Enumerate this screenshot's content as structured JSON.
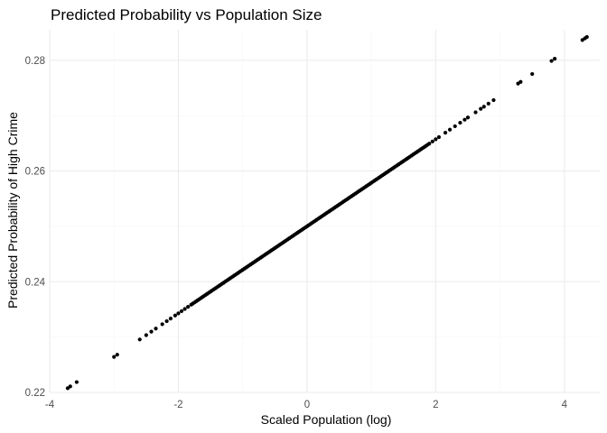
{
  "chart_data": {
    "type": "scatter",
    "title": "Predicted Probability vs Population Size",
    "xlabel": "Scaled Population (log)",
    "ylabel": "Predicted Probability of High Crime",
    "xlim": [
      -4.0,
      4.55
    ],
    "ylim": [
      0.22,
      0.2855
    ],
    "x_ticks": [
      -4,
      -2,
      0,
      2,
      4
    ],
    "y_ticks": [
      0.22,
      0.24,
      0.26,
      0.28
    ],
    "x_tick_labels": [
      "-4",
      "-2",
      "0",
      "2",
      "4"
    ],
    "y_tick_labels": [
      "0.22",
      "0.24",
      "0.26",
      "0.28"
    ],
    "grid": true,
    "legend": "none",
    "point_color": "#000000",
    "relationship": {
      "intercept": 0.25,
      "slope": 0.00786
    },
    "dense_range": [
      -1.8,
      1.9
    ],
    "sparse_x": [
      -3.72,
      -3.68,
      -3.58,
      -3.0,
      -2.95,
      -2.6,
      -2.5,
      -2.42,
      -2.35,
      -2.25,
      -2.18,
      -2.12,
      -2.05,
      -2.0,
      -1.95,
      -1.9,
      -1.85,
      1.95,
      2.0,
      2.05,
      2.15,
      2.22,
      2.3,
      2.38,
      2.45,
      2.5,
      2.62,
      2.7,
      2.75,
      2.82,
      2.9,
      3.28,
      3.32,
      3.5,
      3.8,
      3.85,
      4.28,
      4.32,
      4.35
    ]
  }
}
